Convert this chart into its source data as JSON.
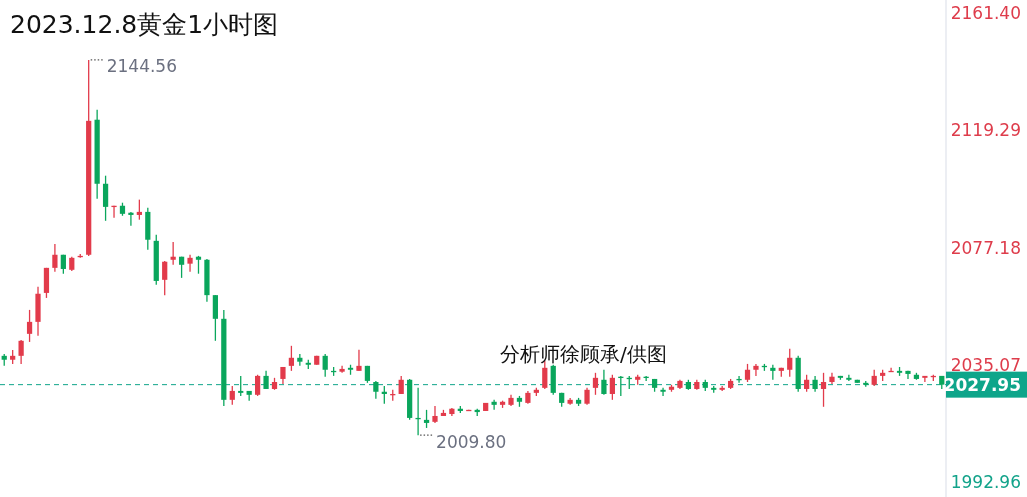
{
  "chart_data": {
    "type": "candlestick",
    "title": "2023.12.8黄金1小时图",
    "categories": [
      null,
      null,
      null,
      null,
      null,
      null,
      null,
      null,
      null,
      null,
      null,
      null,
      null,
      null,
      null,
      null,
      null,
      null,
      null,
      null,
      null,
      null,
      null,
      null,
      null,
      null,
      null,
      null,
      null,
      null,
      null,
      null,
      null,
      null,
      null,
      null,
      null,
      null,
      null,
      null,
      null,
      null,
      null,
      null,
      null,
      null,
      null,
      null,
      null,
      null,
      null,
      null,
      null,
      null,
      null,
      null,
      null,
      null,
      null,
      null,
      null,
      null,
      null,
      null,
      null,
      null,
      null,
      null,
      null,
      null,
      null,
      null,
      null,
      null,
      null,
      null,
      null,
      null,
      null,
      null,
      null,
      null,
      null,
      null,
      null,
      null,
      null,
      null,
      null,
      null,
      null,
      null,
      null,
      null,
      null,
      null,
      null,
      null,
      null,
      null,
      null,
      null,
      null,
      null,
      null,
      null,
      null,
      null,
      null,
      null,
      null,
      null
    ],
    "ohlc": [
      [
        2038.3,
        2039.0,
        2034.7,
        2036.9
      ],
      [
        2036.9,
        2040.4,
        2035.4,
        2038.3
      ],
      [
        2038.3,
        2044.0,
        2035.4,
        2043.7
      ],
      [
        2046.2,
        2054.8,
        2043.3,
        2050.5
      ],
      [
        2050.5,
        2063.1,
        2045.5,
        2060.6
      ],
      [
        2060.9,
        2069.9,
        2059.1,
        2069.9
      ],
      [
        2069.9,
        2078.5,
        2068.5,
        2074.6
      ],
      [
        2074.6,
        2074.6,
        2067.8,
        2069.5
      ],
      [
        2069.2,
        2073.9,
        2068.8,
        2073.5
      ],
      [
        2073.9,
        2074.9,
        2073.5,
        2074.2
      ],
      [
        2074.6,
        2144.56,
        2074.2,
        2122.7
      ],
      [
        2123.1,
        2126.7,
        2094.7,
        2100.1
      ],
      [
        2100.1,
        2103.0,
        2086.8,
        2091.8
      ],
      [
        2091.8,
        2092.2,
        2087.9,
        2092.2
      ],
      [
        2092.2,
        2093.3,
        2088.6,
        2089.3
      ],
      [
        2089.7,
        2090.0,
        2085.0,
        2088.9
      ],
      [
        2088.9,
        2094.4,
        2087.2,
        2090.0
      ],
      [
        2090.0,
        2091.5,
        2076.4,
        2080.0
      ],
      [
        2079.6,
        2081.8,
        2063.8,
        2065.2
      ],
      [
        2065.6,
        2072.4,
        2060.1,
        2072.1
      ],
      [
        2072.8,
        2079.2,
        2071.0,
        2073.9
      ],
      [
        2073.9,
        2073.9,
        2066.3,
        2071.0
      ],
      [
        2071.4,
        2074.6,
        2068.5,
        2073.5
      ],
      [
        2073.9,
        2074.2,
        2067.8,
        2072.8
      ],
      [
        2072.8,
        2073.1,
        2057.7,
        2060.1
      ],
      [
        2060.1,
        2060.1,
        2043.7,
        2051.6
      ],
      [
        2051.6,
        2054.8,
        2020.3,
        2022.5
      ],
      [
        2022.5,
        2027.5,
        2020.7,
        2025.7
      ],
      [
        2025.7,
        2031.1,
        2023.9,
        2025.0
      ],
      [
        2025.7,
        2025.7,
        2022.2,
        2024.3
      ],
      [
        2024.3,
        2031.5,
        2023.9,
        2031.1
      ],
      [
        2031.1,
        2032.9,
        2026.4,
        2026.4
      ],
      [
        2026.4,
        2030.4,
        2026.1,
        2028.9
      ],
      [
        2030.0,
        2034.3,
        2028.2,
        2034.3
      ],
      [
        2034.7,
        2041.9,
        2032.9,
        2037.6
      ],
      [
        2037.6,
        2039.0,
        2034.7,
        2036.2
      ],
      [
        2035.8,
        2036.9,
        2033.6,
        2035.1
      ],
      [
        2035.1,
        2038.3,
        2035.1,
        2038.3
      ],
      [
        2038.3,
        2039.0,
        2030.8,
        2033.3
      ],
      [
        2032.9,
        2034.3,
        2031.1,
        2032.6
      ],
      [
        2032.6,
        2034.7,
        2032.2,
        2033.6
      ],
      [
        2034.0,
        2035.1,
        2031.5,
        2033.3
      ],
      [
        2032.9,
        2040.5,
        2032.9,
        2034.7
      ],
      [
        2034.7,
        2034.7,
        2028.6,
        2029.3
      ],
      [
        2028.9,
        2029.3,
        2022.9,
        2025.4
      ],
      [
        2025.4,
        2027.5,
        2021.1,
        2024.6
      ],
      [
        2024.3,
        2026.1,
        2022.2,
        2024.6
      ],
      [
        2024.6,
        2031.1,
        2024.6,
        2029.7
      ],
      [
        2029.7,
        2030.0,
        2015.3,
        2016.0
      ],
      [
        2016.0,
        2026.8,
        2009.8,
        2015.6
      ],
      [
        2015.3,
        2018.9,
        2012.4,
        2014.2
      ],
      [
        2014.6,
        2020.3,
        2014.2,
        2016.7
      ],
      [
        2016.7,
        2018.9,
        2016.7,
        2017.8
      ],
      [
        2017.4,
        2019.6,
        2016.7,
        2019.3
      ],
      [
        2019.3,
        2020.3,
        2017.8,
        2018.5
      ],
      [
        2018.5,
        2018.9,
        2018.5,
        2018.9
      ],
      [
        2018.9,
        2019.3,
        2016.7,
        2018.1
      ],
      [
        2018.5,
        2021.4,
        2018.5,
        2021.4
      ],
      [
        2021.8,
        2022.5,
        2018.9,
        2020.7
      ],
      [
        2020.7,
        2022.2,
        2019.6,
        2021.8
      ],
      [
        2020.7,
        2024.3,
        2020.3,
        2023.2
      ],
      [
        2023.2,
        2023.9,
        2020.0,
        2021.8
      ],
      [
        2021.4,
        2025.7,
        2021.1,
        2025.0
      ],
      [
        2025.0,
        2026.8,
        2023.9,
        2026.1
      ],
      [
        2026.8,
        2036.5,
        2026.4,
        2034.0
      ],
      [
        2034.7,
        2035.1,
        2024.3,
        2025.0
      ],
      [
        2025.0,
        2025.0,
        2020.0,
        2021.4
      ],
      [
        2021.1,
        2023.2,
        2020.7,
        2022.5
      ],
      [
        2022.5,
        2023.2,
        2020.3,
        2021.1
      ],
      [
        2021.1,
        2026.8,
        2020.7,
        2026.1
      ],
      [
        2026.8,
        2032.2,
        2024.3,
        2030.4
      ],
      [
        2029.7,
        2033.3,
        2024.3,
        2024.6
      ],
      [
        2024.6,
        2031.5,
        2022.5,
        2030.4
      ],
      [
        2030.8,
        2031.1,
        2023.9,
        2030.4
      ],
      [
        2030.4,
        2031.1,
        2026.4,
        2030.0
      ],
      [
        2029.7,
        2031.5,
        2027.9,
        2030.8
      ],
      [
        2030.8,
        2031.1,
        2029.3,
        2030.4
      ],
      [
        2030.0,
        2030.0,
        2025.4,
        2026.8
      ],
      [
        2026.1,
        2026.8,
        2023.9,
        2025.4
      ],
      [
        2026.1,
        2027.9,
        2025.4,
        2027.2
      ],
      [
        2026.8,
        2029.7,
        2026.4,
        2029.3
      ],
      [
        2028.9,
        2029.7,
        2026.1,
        2026.4
      ],
      [
        2026.4,
        2029.7,
        2026.1,
        2028.9
      ],
      [
        2028.9,
        2029.7,
        2025.7,
        2026.8
      ],
      [
        2026.8,
        2027.5,
        2025.0,
        2026.1
      ],
      [
        2026.1,
        2027.5,
        2025.7,
        2026.8
      ],
      [
        2026.8,
        2030.0,
        2026.4,
        2029.3
      ],
      [
        2030.0,
        2031.1,
        2028.6,
        2029.7
      ],
      [
        2029.7,
        2035.4,
        2028.9,
        2033.3
      ],
      [
        2033.3,
        2035.4,
        2031.1,
        2034.7
      ],
      [
        2034.7,
        2035.4,
        2032.9,
        2034.3
      ],
      [
        2034.0,
        2035.1,
        2029.7,
        2032.9
      ],
      [
        2032.9,
        2034.0,
        2030.8,
        2034.0
      ],
      [
        2033.3,
        2040.8,
        2030.8,
        2037.6
      ],
      [
        2037.6,
        2038.3,
        2025.4,
        2026.4
      ],
      [
        2026.4,
        2031.5,
        2025.4,
        2029.7
      ],
      [
        2029.7,
        2031.1,
        2025.4,
        2026.4
      ],
      [
        2026.4,
        2032.2,
        2020.0,
        2028.9
      ],
      [
        2028.9,
        2032.2,
        2028.2,
        2030.8
      ],
      [
        2031.1,
        2031.1,
        2029.7,
        2030.4
      ],
      [
        2030.4,
        2031.5,
        2029.3,
        2029.7
      ],
      [
        2029.7,
        2029.7,
        2028.6,
        2028.6
      ],
      [
        2028.6,
        2029.3,
        2027.2,
        2027.9
      ],
      [
        2027.9,
        2033.3,
        2027.5,
        2031.1
      ],
      [
        2031.1,
        2033.3,
        2029.3,
        2032.2
      ],
      [
        2032.6,
        2034.0,
        2032.6,
        2032.9
      ],
      [
        2032.9,
        2034.3,
        2031.1,
        2032.2
      ],
      [
        2032.9,
        2032.9,
        2030.0,
        2031.8
      ],
      [
        2031.5,
        2032.2,
        2029.7,
        2030.0
      ],
      [
        2030.4,
        2031.1,
        2028.9,
        2031.1
      ],
      [
        2030.8,
        2031.5,
        2029.3,
        2031.1
      ],
      [
        2031.1,
        2031.1,
        2026.4,
        2027.95
      ]
    ],
    "colors": [
      "#0aa65c",
      "#e23b4b",
      "#e23b4b",
      "#e23b4b",
      "#e23b4b",
      "#e23b4b",
      "#e23b4b",
      "#0aa65c",
      "#e23b4b",
      "#e23b4b",
      "#e23b4b",
      "#0aa65c",
      "#0aa65c",
      "#e23b4b",
      "#0aa65c",
      "#0aa65c",
      "#e23b4b",
      "#0aa65c",
      "#0aa65c",
      "#e23b4b",
      "#e23b4b",
      "#0aa65c",
      "#e23b4b",
      "#0aa65c",
      "#0aa65c",
      "#0aa65c",
      "#0aa65c",
      "#e23b4b",
      "#0aa65c",
      "#0aa65c",
      "#e23b4b",
      "#0aa65c",
      "#e23b4b",
      "#e23b4b",
      "#e23b4b",
      "#0aa65c",
      "#0aa65c",
      "#e23b4b",
      "#0aa65c",
      "#0aa65c",
      "#e23b4b",
      "#0aa65c",
      "#e23b4b",
      "#0aa65c",
      "#0aa65c",
      "#0aa65c",
      "#e23b4b",
      "#e23b4b",
      "#0aa65c",
      "#0aa65c",
      "#0aa65c",
      "#e23b4b",
      "#e23b4b",
      "#e23b4b",
      "#0aa65c",
      "#e23b4b",
      "#0aa65c",
      "#e23b4b",
      "#0aa65c",
      "#e23b4b",
      "#e23b4b",
      "#0aa65c",
      "#e23b4b",
      "#e23b4b",
      "#e23b4b",
      "#0aa65c",
      "#0aa65c",
      "#e23b4b",
      "#0aa65c",
      "#e23b4b",
      "#e23b4b",
      "#0aa65c",
      "#e23b4b",
      "#0aa65c",
      "#0aa65c",
      "#e23b4b",
      "#0aa65c",
      "#0aa65c",
      "#0aa65c",
      "#e23b4b",
      "#e23b4b",
      "#0aa65c",
      "#e23b4b",
      "#0aa65c",
      "#0aa65c",
      "#e23b4b",
      "#e23b4b",
      "#0aa65c",
      "#e23b4b",
      "#e23b4b",
      "#0aa65c",
      "#0aa65c",
      "#e23b4b",
      "#e23b4b",
      "#0aa65c",
      "#e23b4b",
      "#0aa65c",
      "#e23b4b",
      "#e23b4b",
      "#0aa65c",
      "#0aa65c",
      "#0aa65c",
      "#0aa65c",
      "#e23b4b",
      "#e23b4b",
      "#e23b4b",
      "#0aa65c",
      "#0aa65c",
      "#0aa65c",
      "#e23b4b",
      "#e23b4b",
      "#0aa65c"
    ],
    "ylim": [
      1987.6,
      2166.1
    ],
    "yticks": [
      {
        "value": 2161.4,
        "label": "2161.40"
      },
      {
        "value": 2119.29,
        "label": "2119.29"
      },
      {
        "value": 2077.18,
        "label": "2077.18"
      },
      {
        "value": 2035.07,
        "label": "2035.07"
      },
      {
        "value": 1992.96,
        "label": "1992.96"
      }
    ],
    "tick_labels": "y",
    "ref_lines": [
      {
        "axis": "y",
        "value": 2027.95,
        "label": "2027.95",
        "color": "#0ea58a",
        "line_style": "dashed"
      }
    ],
    "annotations": [
      "2144.56",
      "2009.80",
      "分析师徐顾承/供图"
    ]
  }
}
